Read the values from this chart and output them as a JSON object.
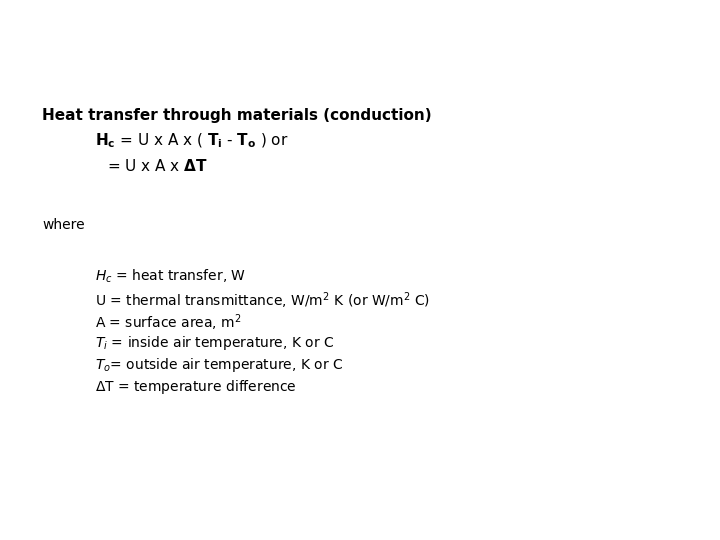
{
  "bg_color": "#ffffff",
  "text_color": "#000000",
  "font_size_title": 11,
  "font_size_eq": 11,
  "font_size_body": 10,
  "font_size_where": 10
}
